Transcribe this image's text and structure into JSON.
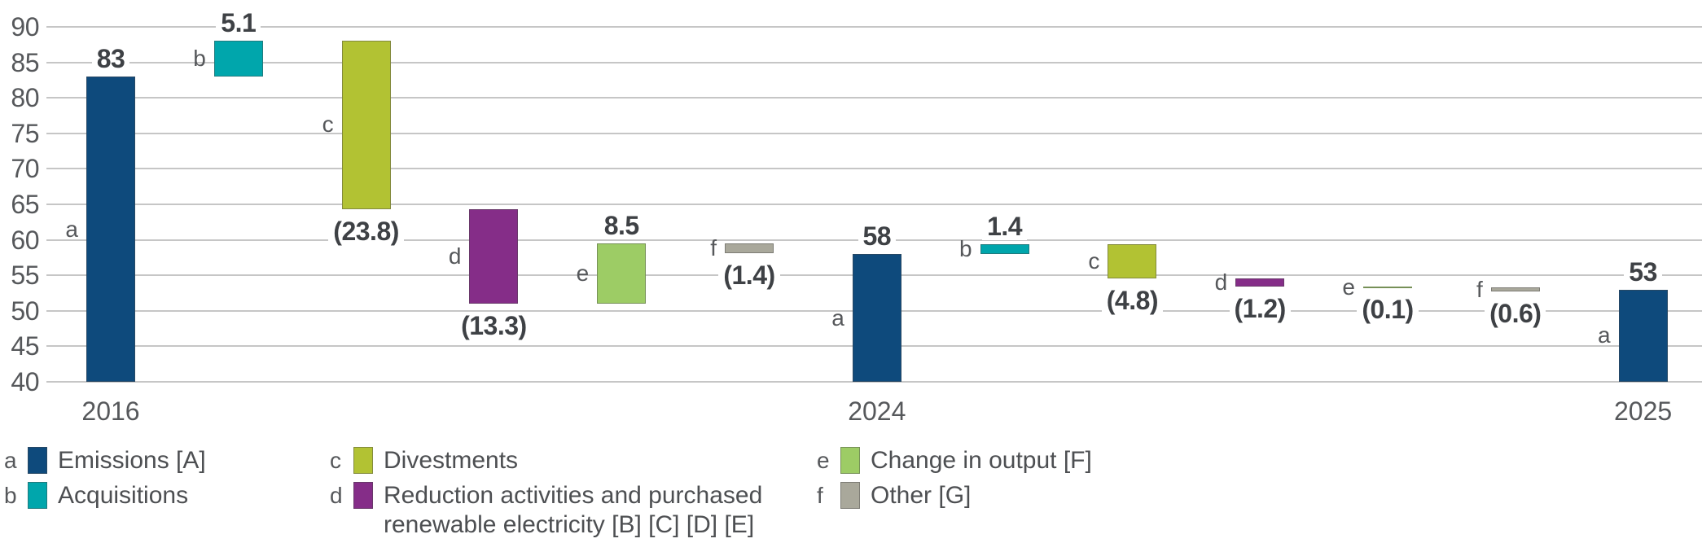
{
  "chart_data": {
    "type": "waterfall",
    "title": "",
    "xlabel": "",
    "ylabel": "",
    "ylim": [
      40,
      90
    ],
    "ytick_step": 5,
    "yticks": [
      "90",
      "85",
      "80",
      "75",
      "70",
      "65",
      "60",
      "55",
      "50",
      "45",
      "40"
    ],
    "grid": true,
    "legend_position": "bottom",
    "series_colors": {
      "a": "#0e4a7c",
      "b": "#00a6ac",
      "c": "#b2c233",
      "d": "#852d88",
      "e": "#9dcc65",
      "f": "#a9a89b"
    },
    "grid_color": "#c6c6c6",
    "axis_text_color": "#56585b",
    "value_label_color": "#3e4145",
    "columns": [
      {
        "letter": "a",
        "series": "a",
        "lo": 40,
        "hi": 83,
        "value": 83,
        "label": "83",
        "label_position": "above",
        "year": "2016"
      },
      {
        "letter": "b",
        "series": "b",
        "lo": 83,
        "hi": 88.1,
        "value": 5.1,
        "label": "5.1",
        "label_position": "above"
      },
      {
        "letter": "c",
        "series": "c",
        "lo": 64.3,
        "hi": 88.1,
        "value": -23.8,
        "label": "(23.8)",
        "label_position": "below"
      },
      {
        "letter": "d",
        "series": "d",
        "lo": 51.0,
        "hi": 64.3,
        "value": -13.3,
        "label": "(13.3)",
        "label_position": "below"
      },
      {
        "letter": "e",
        "series": "e",
        "lo": 51.0,
        "hi": 59.5,
        "value": 8.5,
        "label": "8.5",
        "label_position": "above"
      },
      {
        "letter": "f",
        "series": "f",
        "lo": 58.1,
        "hi": 59.5,
        "value": -1.4,
        "label": "(1.4)",
        "label_position": "below"
      },
      {
        "letter": "a",
        "series": "a",
        "lo": 40,
        "hi": 58,
        "value": 58,
        "label": "58",
        "label_position": "above",
        "year": "2024"
      },
      {
        "letter": "b",
        "series": "b",
        "lo": 58,
        "hi": 59.4,
        "value": 1.4,
        "label": "1.4",
        "label_position": "above"
      },
      {
        "letter": "c",
        "series": "c",
        "lo": 54.6,
        "hi": 59.4,
        "value": -4.8,
        "label": "(4.8)",
        "label_position": "below"
      },
      {
        "letter": "d",
        "series": "d",
        "lo": 53.4,
        "hi": 54.6,
        "value": -1.2,
        "label": "(1.2)",
        "label_position": "below"
      },
      {
        "letter": "e",
        "series": "e",
        "lo": 53.3,
        "hi": 53.4,
        "value": -0.1,
        "label": "(0.1)",
        "label_position": "below"
      },
      {
        "letter": "f",
        "series": "f",
        "lo": 52.7,
        "hi": 53.3,
        "value": -0.6,
        "label": "(0.6)",
        "label_position": "below"
      },
      {
        "letter": "a",
        "series": "a",
        "lo": 40,
        "hi": 53,
        "value": 53,
        "label": "53",
        "label_position": "above",
        "year": "2025"
      }
    ],
    "legend": {
      "columns": [
        {
          "items": [
            {
              "letter": "a",
              "series": "a",
              "lines": [
                "Emissions [A]"
              ]
            },
            {
              "letter": "b",
              "series": "b",
              "lines": [
                "Acquisitions"
              ]
            }
          ]
        },
        {
          "items": [
            {
              "letter": "c",
              "series": "c",
              "lines": [
                "Divestments"
              ]
            },
            {
              "letter": "d",
              "series": "d",
              "lines": [
                "Reduction activities and purchased",
                "renewable electricity [B] [C] [D] [E]"
              ]
            }
          ]
        },
        {
          "items": [
            {
              "letter": "e",
              "series": "e",
              "lines": [
                "Change in output [F]"
              ]
            },
            {
              "letter": "f",
              "series": "f",
              "lines": [
                "Other [G]"
              ]
            }
          ]
        }
      ]
    }
  }
}
